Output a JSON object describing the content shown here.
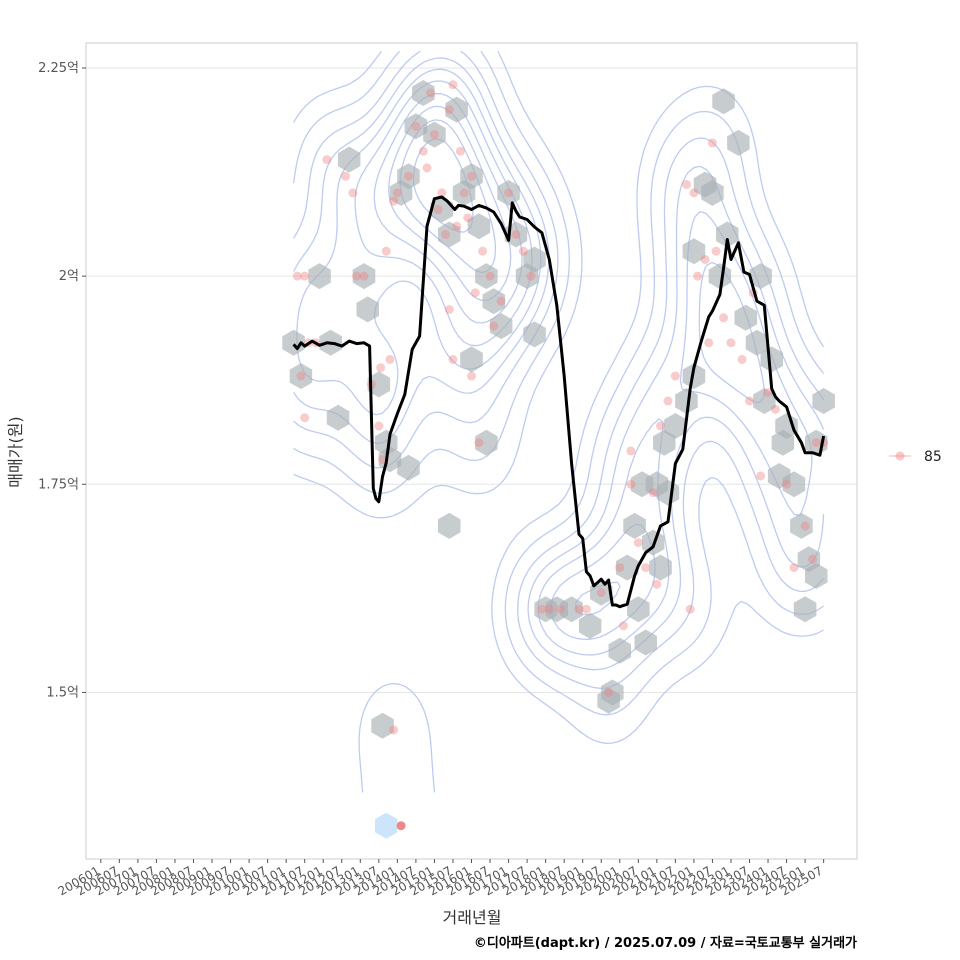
{
  "chart_data": {
    "type": "line",
    "title": "",
    "xlabel": "거래년월",
    "ylabel": "매매가(원)",
    "caption": "©디아파트(dapt.kr) / 2025.07.09 / 자료=국토교통부 실거래가",
    "y_unit": "억",
    "ylim": [
      1.3,
      2.28
    ],
    "xlim": [
      2005.6,
      2026.4
    ],
    "grid": true,
    "legend_position": "right",
    "y_ticks": [
      {
        "value": 1.5,
        "label": "1.5억"
      },
      {
        "value": 1.75,
        "label": "1.75억"
      },
      {
        "value": 2.0,
        "label": "2억"
      },
      {
        "value": 2.25,
        "label": "2.25억"
      }
    ],
    "x_ticks": [
      {
        "value": 2006.0,
        "label": "200601"
      },
      {
        "value": 2006.5,
        "label": "200607"
      },
      {
        "value": 2007.0,
        "label": "200701"
      },
      {
        "value": 2007.5,
        "label": "200707"
      },
      {
        "value": 2008.0,
        "label": "200801"
      },
      {
        "value": 2008.5,
        "label": "200807"
      },
      {
        "value": 2009.0,
        "label": "200901"
      },
      {
        "value": 2009.5,
        "label": "200907"
      },
      {
        "value": 2010.0,
        "label": "201001"
      },
      {
        "value": 2010.5,
        "label": "201007"
      },
      {
        "value": 2011.0,
        "label": "201101"
      },
      {
        "value": 2011.5,
        "label": "201107"
      },
      {
        "value": 2012.0,
        "label": "201201"
      },
      {
        "value": 2012.5,
        "label": "201207"
      },
      {
        "value": 2013.0,
        "label": "201301"
      },
      {
        "value": 2013.5,
        "label": "201307"
      },
      {
        "value": 2014.0,
        "label": "201401"
      },
      {
        "value": 2014.5,
        "label": "201407"
      },
      {
        "value": 2015.0,
        "label": "201501"
      },
      {
        "value": 2015.5,
        "label": "201507"
      },
      {
        "value": 2016.0,
        "label": "201601"
      },
      {
        "value": 2016.5,
        "label": "201607"
      },
      {
        "value": 2017.0,
        "label": "201701"
      },
      {
        "value": 2017.5,
        "label": "201707"
      },
      {
        "value": 2018.0,
        "label": "201801"
      },
      {
        "value": 2018.5,
        "label": "201807"
      },
      {
        "value": 2019.0,
        "label": "201901"
      },
      {
        "value": 2019.5,
        "label": "201907"
      },
      {
        "value": 2020.0,
        "label": "202001"
      },
      {
        "value": 2020.5,
        "label": "202007"
      },
      {
        "value": 2021.0,
        "label": "202101"
      },
      {
        "value": 2021.5,
        "label": "202107"
      },
      {
        "value": 2022.0,
        "label": "202201"
      },
      {
        "value": 2022.5,
        "label": "202207"
      },
      {
        "value": 2023.0,
        "label": "202301"
      },
      {
        "value": 2023.5,
        "label": "202307"
      },
      {
        "value": 2024.0,
        "label": "202401"
      },
      {
        "value": 2024.5,
        "label": "202407"
      },
      {
        "value": 2025.0,
        "label": "202501"
      },
      {
        "value": 2025.5,
        "label": "202507"
      }
    ],
    "legend": [
      {
        "label": "85",
        "color": "#F08080"
      }
    ],
    "colors": {
      "points": "#F08080",
      "hex": "#A9B0B6",
      "hex_light": "#C6E2FA",
      "contour": "#A7B9EA",
      "line": "#000000",
      "grid": "#E6E6E6",
      "panel_border": "#CCCCCC"
    },
    "series": [
      {
        "kind": "moving-average",
        "x": [
          2011.2,
          2011.3,
          2011.4,
          2011.5,
          2011.7,
          2011.9,
          2012.1,
          2012.3,
          2012.5,
          2012.7,
          2012.9,
          2013.1,
          2013.25,
          2013.35,
          2013.42,
          2013.5,
          2013.6,
          2013.7,
          2013.8,
          2014.0,
          2014.2,
          2014.3,
          2014.4,
          2014.6,
          2014.8,
          2015.0,
          2015.2,
          2015.35,
          2015.45,
          2015.55,
          2015.65,
          2015.8,
          2016.0,
          2016.2,
          2016.4,
          2016.6,
          2016.8,
          2017.0,
          2017.1,
          2017.2,
          2017.3,
          2017.5,
          2017.7,
          2017.9,
          2018.1,
          2018.3,
          2018.5,
          2018.7,
          2018.9,
          2019.0,
          2019.1,
          2019.2,
          2019.3,
          2019.4,
          2019.5,
          2019.6,
          2019.7,
          2019.8,
          2019.9,
          2020.0,
          2020.2,
          2020.4,
          2020.5,
          2020.7,
          2020.9,
          2021.1,
          2021.3,
          2021.5,
          2021.7,
          2021.9,
          2022.0,
          2022.2,
          2022.4,
          2022.5,
          2022.7,
          2022.8,
          2022.9,
          2023.0,
          2023.2,
          2023.35,
          2023.5,
          2023.7,
          2023.9,
          2024.1,
          2024.2,
          2024.3,
          2024.5,
          2024.7,
          2024.9,
          2025.0,
          2025.2,
          2025.4,
          2025.5
        ],
        "y": [
          1.918,
          1.913,
          1.92,
          1.916,
          1.922,
          1.917,
          1.92,
          1.919,
          1.916,
          1.922,
          1.919,
          1.92,
          1.916,
          1.745,
          1.733,
          1.729,
          1.759,
          1.776,
          1.81,
          1.835,
          1.858,
          1.885,
          1.912,
          1.928,
          2.06,
          2.093,
          2.095,
          2.09,
          2.085,
          2.08,
          2.085,
          2.084,
          2.08,
          2.085,
          2.082,
          2.077,
          2.063,
          2.043,
          2.088,
          2.078,
          2.071,
          2.068,
          2.059,
          2.052,
          2.02,
          1.965,
          1.88,
          1.775,
          1.69,
          1.685,
          1.645,
          1.64,
          1.628,
          1.632,
          1.636,
          1.63,
          1.635,
          1.605,
          1.605,
          1.603,
          1.606,
          1.64,
          1.652,
          1.668,
          1.675,
          1.7,
          1.705,
          1.775,
          1.792,
          1.865,
          1.89,
          1.922,
          1.951,
          1.958,
          1.978,
          2.01,
          2.044,
          2.02,
          2.04,
          2.005,
          2.002,
          1.97,
          1.965,
          1.865,
          1.855,
          1.85,
          1.843,
          1.815,
          1.8,
          1.788,
          1.788,
          1.785,
          1.808
        ]
      }
    ],
    "points": {
      "x": [
        2011.3,
        2011.5,
        2011.6,
        2011.8,
        2011.4,
        2011.5,
        2012.1,
        2012.6,
        2012.8,
        2012.9,
        2013.1,
        2013.3,
        2013.5,
        2013.6,
        2013.55,
        2013.8,
        2013.9,
        2013.7,
        2014.0,
        2014.3,
        2014.5,
        2014.7,
        2014.8,
        2014.9,
        2015.0,
        2015.1,
        2015.2,
        2015.3,
        2015.4,
        2015.5,
        2015.6,
        2015.7,
        2015.8,
        2015.9,
        2016.0,
        2016.1,
        2016.3,
        2016.5,
        2016.6,
        2016.8,
        2017.0,
        2017.2,
        2017.4,
        2017.6,
        2017.9,
        2018.1,
        2018.4,
        2018.9,
        2019.1,
        2019.5,
        2019.7,
        2020.0,
        2020.1,
        2020.3,
        2020.5,
        2020.7,
        2020.9,
        2021.1,
        2021.3,
        2021.5,
        2021.8,
        2022.0,
        2022.1,
        2022.3,
        2022.5,
        2022.6,
        2022.8,
        2023.0,
        2023.3,
        2023.5,
        2023.8,
        2024.0,
        2024.2,
        2024.5,
        2024.7,
        2025.0,
        2025.2,
        2025.3,
        2025.5,
        2013.9,
        2014.1,
        2015.4,
        2015.5,
        2016.0,
        2016.2,
        2020.3,
        2021.0,
        2021.9,
        2022.4,
        2023.6
      ],
      "y": [
        2.0,
        2.0,
        1.92,
        1.92,
        1.88,
        1.83,
        2.14,
        2.12,
        2.1,
        2.0,
        2.0,
        1.87,
        1.82,
        1.78,
        1.89,
        1.9,
        2.09,
        2.03,
        2.1,
        2.12,
        2.18,
        2.15,
        2.13,
        2.22,
        2.17,
        2.08,
        2.1,
        2.05,
        2.2,
        2.23,
        2.06,
        2.15,
        2.1,
        2.07,
        2.12,
        1.98,
        2.03,
        2.0,
        1.94,
        1.97,
        2.1,
        2.05,
        2.03,
        2.0,
        1.6,
        1.6,
        1.6,
        1.6,
        1.6,
        1.62,
        1.5,
        1.65,
        1.58,
        1.75,
        1.68,
        1.65,
        1.74,
        1.82,
        1.85,
        1.88,
        2.11,
        2.1,
        2.0,
        2.02,
        2.16,
        2.03,
        1.95,
        1.92,
        1.9,
        1.85,
        1.76,
        1.86,
        1.84,
        1.75,
        1.65,
        1.7,
        1.66,
        1.8,
        1.8,
        1.455,
        1.34,
        1.96,
        1.9,
        1.88,
        1.8,
        1.79,
        1.63,
        1.6,
        1.92,
        1.98
      ]
    },
    "hexbins": {
      "x": [
        2011.2,
        2011.4,
        2011.9,
        2012.2,
        2012.4,
        2012.7,
        2013.1,
        2013.2,
        2013.5,
        2013.7,
        2013.8,
        2014.1,
        2014.3,
        2014.5,
        2014.7,
        2015.0,
        2015.2,
        2015.4,
        2015.6,
        2015.8,
        2016.0,
        2016.2,
        2016.4,
        2016.6,
        2016.8,
        2017.0,
        2017.2,
        2017.5,
        2017.7,
        2018.0,
        2018.3,
        2018.7,
        2019.2,
        2019.5,
        2019.8,
        2020.0,
        2020.2,
        2020.4,
        2020.6,
        2020.9,
        2021.1,
        2021.3,
        2021.5,
        2021.8,
        2022.0,
        2022.3,
        2022.5,
        2022.7,
        2022.9,
        2023.2,
        2023.4,
        2023.7,
        2023.9,
        2024.1,
        2024.4,
        2024.7,
        2024.9,
        2025.1,
        2025.3,
        2025.5,
        2014.3,
        2015.4,
        2016.0,
        2020.5,
        2013.6,
        2013.7,
        2021.2,
        2022.0,
        2022.8,
        2023.8,
        2024.3,
        2024.5,
        2025.0,
        2025.3,
        2019.7,
        2020.7,
        2021.0,
        2016.4,
        2017.7
      ],
      "y": [
        1.92,
        1.88,
        2.0,
        1.92,
        1.83,
        2.14,
        2.0,
        1.96,
        1.87,
        1.8,
        1.78,
        2.1,
        2.12,
        2.18,
        2.22,
        2.17,
        2.08,
        2.05,
        2.2,
        2.1,
        2.12,
        2.06,
        2.0,
        1.97,
        1.94,
        2.1,
        2.05,
        2.0,
        2.02,
        1.6,
        1.6,
        1.6,
        1.58,
        1.62,
        1.5,
        1.55,
        1.65,
        1.7,
        1.75,
        1.68,
        1.65,
        1.74,
        1.82,
        1.85,
        1.88,
        2.11,
        2.1,
        2.0,
        2.05,
        2.16,
        1.95,
        1.92,
        1.85,
        1.9,
        1.8,
        1.75,
        1.7,
        1.66,
        1.8,
        1.85,
        1.77,
        1.7,
        1.9,
        1.6,
        1.46,
        1.34,
        1.8,
        2.03,
        2.21,
        2.0,
        1.76,
        1.82,
        1.6,
        1.64,
        1.49,
        1.56,
        1.75,
        1.8,
        1.93
      ]
    }
  }
}
